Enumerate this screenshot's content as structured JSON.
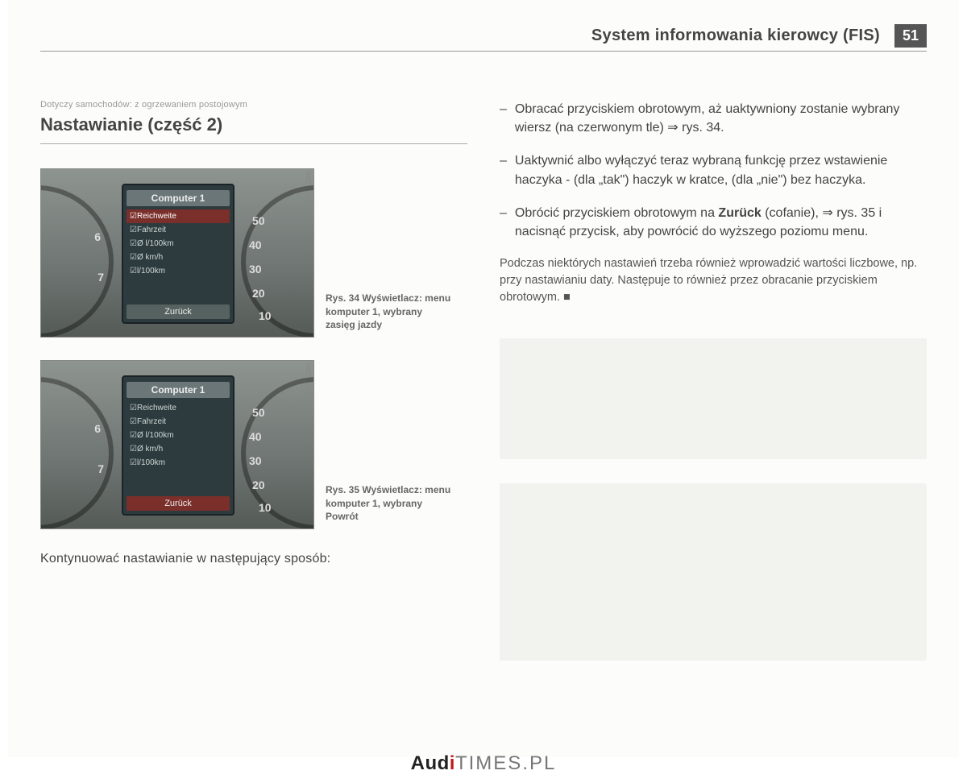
{
  "header": {
    "title": "System informowania kierowcy (FIS)",
    "page_number": "51"
  },
  "left": {
    "subnote": "Dotyczy samochodów: z ogrzewaniem postojowym",
    "section_title": "Nastawianie (część 2)",
    "continue": "Kontynuować nastawianie w następujący sposób:"
  },
  "figures": [
    {
      "id": "B8E-0068",
      "screen_title": "Computer 1",
      "items": [
        "☑Reichweite",
        "☑Fahrzeit",
        "☑Ø l/100km",
        "☑Ø km/h",
        "☑l/100km"
      ],
      "selected_index": 0,
      "back_label": "Zurück",
      "back_selected": false,
      "caption": "Rys. 34  Wyświetlacz: menu komputer 1, wybrany zasięg jazdy",
      "left_marks": [
        "6",
        "7"
      ],
      "right_marks": [
        "50",
        "40",
        "30",
        "20",
        "10"
      ]
    },
    {
      "id": "B8E-0069",
      "screen_title": "Computer 1",
      "items": [
        "☑Reichweite",
        "☑Fahrzeit",
        "☑Ø l/100km",
        "☑Ø km/h",
        "☑l/100km"
      ],
      "selected_index": -1,
      "back_label": "Zurück",
      "back_selected": true,
      "caption": "Rys. 35  Wyświetlacz: menu komputer 1, wybrany Powrót",
      "left_marks": [
        "6",
        "7"
      ],
      "right_marks": [
        "50",
        "40",
        "30",
        "20",
        "10"
      ]
    }
  ],
  "right": {
    "instructions": [
      "Obracać przyciskiem obrotowym, aż uaktywniony zostanie wybrany wiersz (na czerwonym tle) ⇒ rys. 34.",
      "Uaktywnić albo wyłączyć teraz wybraną funkcję przez wstawienie haczyka - (dla „tak\") haczyk w kratce, (dla „nie\") bez haczyka.",
      "Obrócić przyciskiem obrotowym na <b>Zurück</b> (cofanie), ⇒ rys. 35 i nacisnąć przycisk, aby powrócić do wyższego poziomu menu."
    ],
    "paragraph": "Podczas niektórych nastawień trzeba również wprowadzić wartości liczbowe, np. przy nastawianiu daty. Następuje to również przez obracanie przyciskiem obrotowym. ■"
  },
  "footer": {
    "brand_a": "Audi",
    "brand_b": "TIMES",
    "brand_c": ".PL"
  },
  "colors": {
    "selected_bg": "#7a2f2a",
    "screen_bg": "#2d3b3f",
    "dash_bg_top": "#8e9490"
  }
}
